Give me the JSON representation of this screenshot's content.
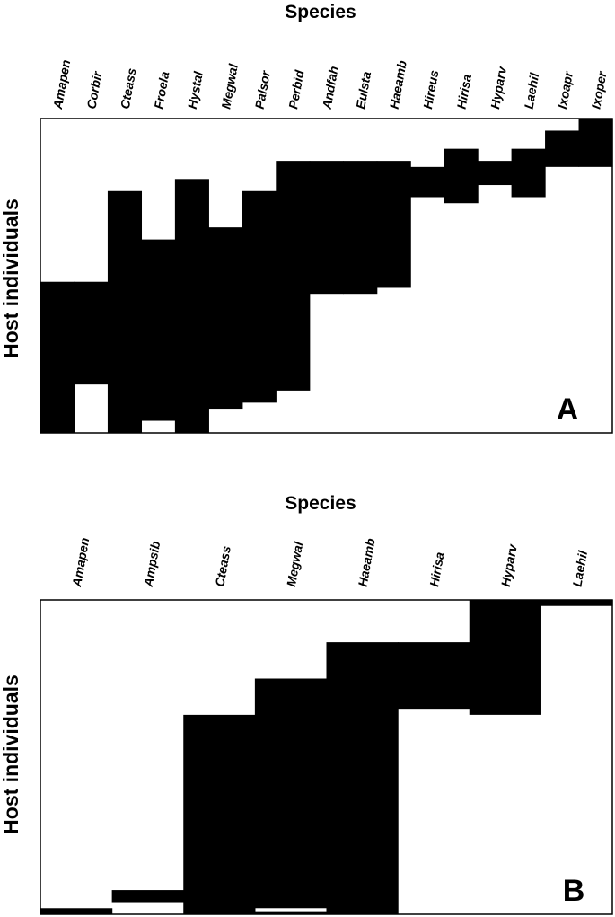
{
  "chart_data": [
    {
      "type": "heatmap",
      "panel_label": "A",
      "title": "Species",
      "ylabel": "Host individuals",
      "categories": [
        "Amapen",
        "Corbir",
        "Cteass",
        "Froela",
        "Hystal",
        "Megwal",
        "Palsor",
        "Perbid",
        "Andfah",
        "Eulsta",
        "Haeamb",
        "Hireus",
        "Hirisa",
        "Hyparv",
        "Laehil",
        "Ixoapr",
        "Ixoper"
      ],
      "n_hosts": 52,
      "description_of_cells": "Each column lists occupied host-row ranges [start_row, end_row) out of n_hosts rows (row 0 = top)",
      "occupied_ranges": [
        [
          [
            27,
            52
          ]
        ],
        [
          [
            27,
            44
          ]
        ],
        [
          [
            12,
            52
          ]
        ],
        [
          [
            20,
            50
          ]
        ],
        [
          [
            10,
            52
          ]
        ],
        [
          [
            18,
            48
          ]
        ],
        [
          [
            12,
            47
          ]
        ],
        [
          [
            7,
            45
          ]
        ],
        [
          [
            7,
            29
          ]
        ],
        [
          [
            7,
            29
          ]
        ],
        [
          [
            7,
            28
          ]
        ],
        [
          [
            8,
            13
          ]
        ],
        [
          [
            5,
            14
          ]
        ],
        [
          [
            7,
            11
          ]
        ],
        [
          [
            5,
            13
          ]
        ],
        [
          [
            2,
            8
          ]
        ],
        [
          [
            0,
            8
          ]
        ]
      ],
      "grid": false
    },
    {
      "type": "heatmap",
      "panel_label": "B",
      "title": "Species",
      "ylabel": "Host individuals",
      "categories": [
        "Amapen",
        "Ampsib",
        "Cteass",
        "Megwal",
        "Haeamb",
        "Hirisa",
        "Hyparv",
        "Laehil"
      ],
      "n_hosts": 52,
      "description_of_cells": "Each column lists occupied host-row ranges [start_row, end_row) out of n_hosts rows (row 0 = top)",
      "occupied_ranges": [
        [
          [
            51,
            52
          ]
        ],
        [
          [
            48,
            50
          ]
        ],
        [
          [
            19,
            52
          ]
        ],
        [
          [
            13,
            51
          ],
          [
            51.5,
            52
          ]
        ],
        [
          [
            7,
            52
          ]
        ],
        [
          [
            7,
            18
          ]
        ],
        [
          [
            0,
            19
          ]
        ],
        [
          [
            0,
            1
          ]
        ]
      ],
      "grid": false
    }
  ]
}
